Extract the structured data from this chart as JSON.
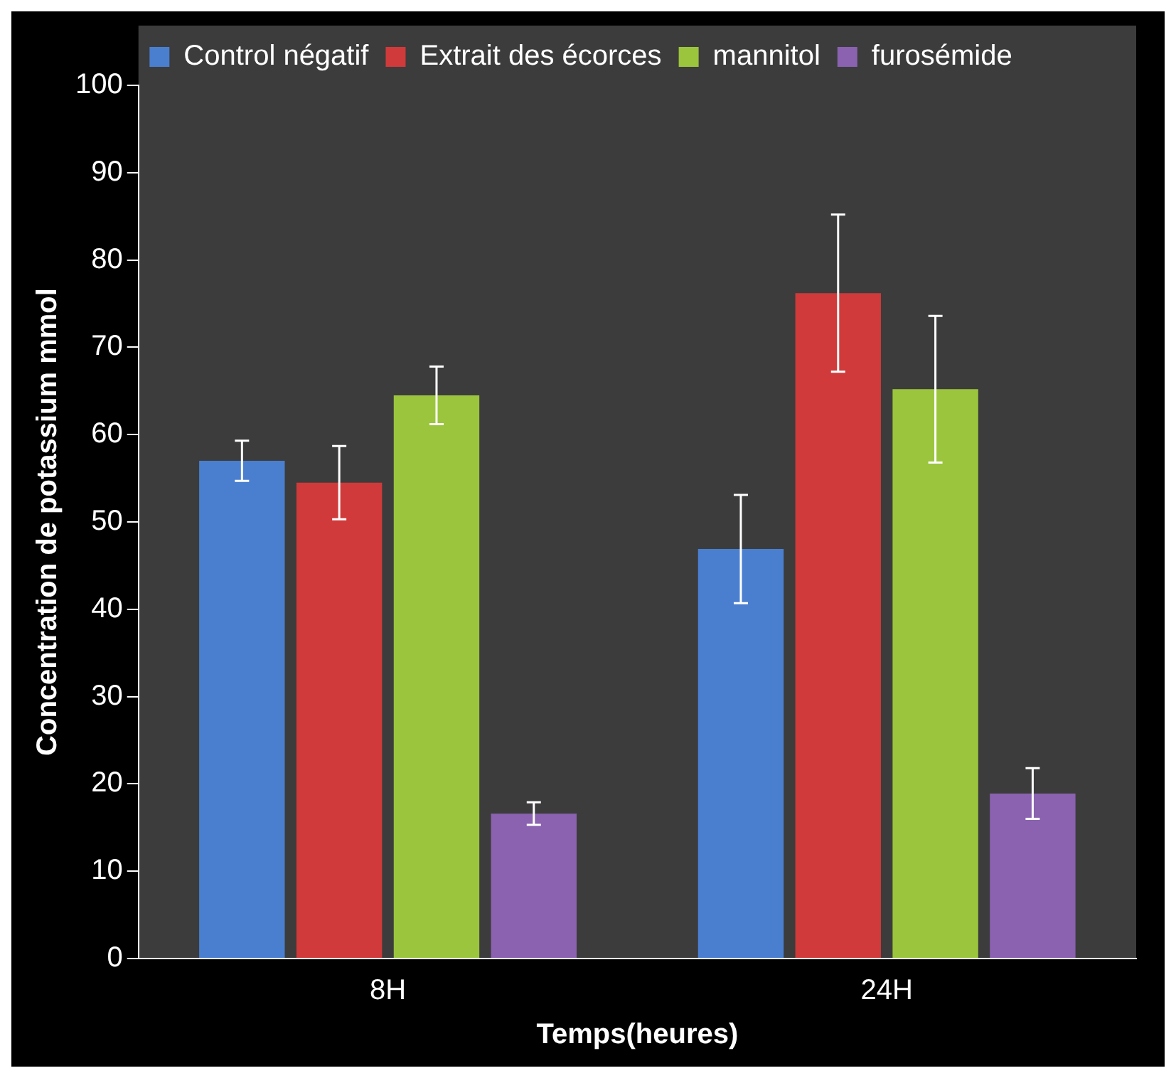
{
  "chart_data": {
    "type": "bar",
    "xlabel": "Temps(heures)",
    "ylabel": "Concentration de potassium mmol",
    "categories": [
      "8H",
      "24H"
    ],
    "series": [
      {
        "name": "Control négatif",
        "color": "#4a7fd0",
        "values": [
          57,
          46.9
        ],
        "errors": [
          2.3,
          6.2
        ]
      },
      {
        "name": "Extrait des écorces",
        "color": "#d03a3a",
        "values": [
          54.5,
          76.2
        ],
        "errors": [
          4.2,
          9
        ]
      },
      {
        "name": "mannitol",
        "color": "#9bc53d",
        "values": [
          64.5,
          65.2
        ],
        "errors": [
          3.3,
          8.4
        ]
      },
      {
        "name": "furosémide",
        "color": "#8a62b0",
        "values": [
          16.6,
          18.9
        ],
        "errors": [
          1.3,
          2.9
        ]
      }
    ],
    "ylim": [
      0,
      100
    ],
    "yticks": [
      0,
      10,
      20,
      30,
      40,
      50,
      60,
      70,
      80,
      90,
      100
    ],
    "grid": false,
    "legend": "top"
  }
}
